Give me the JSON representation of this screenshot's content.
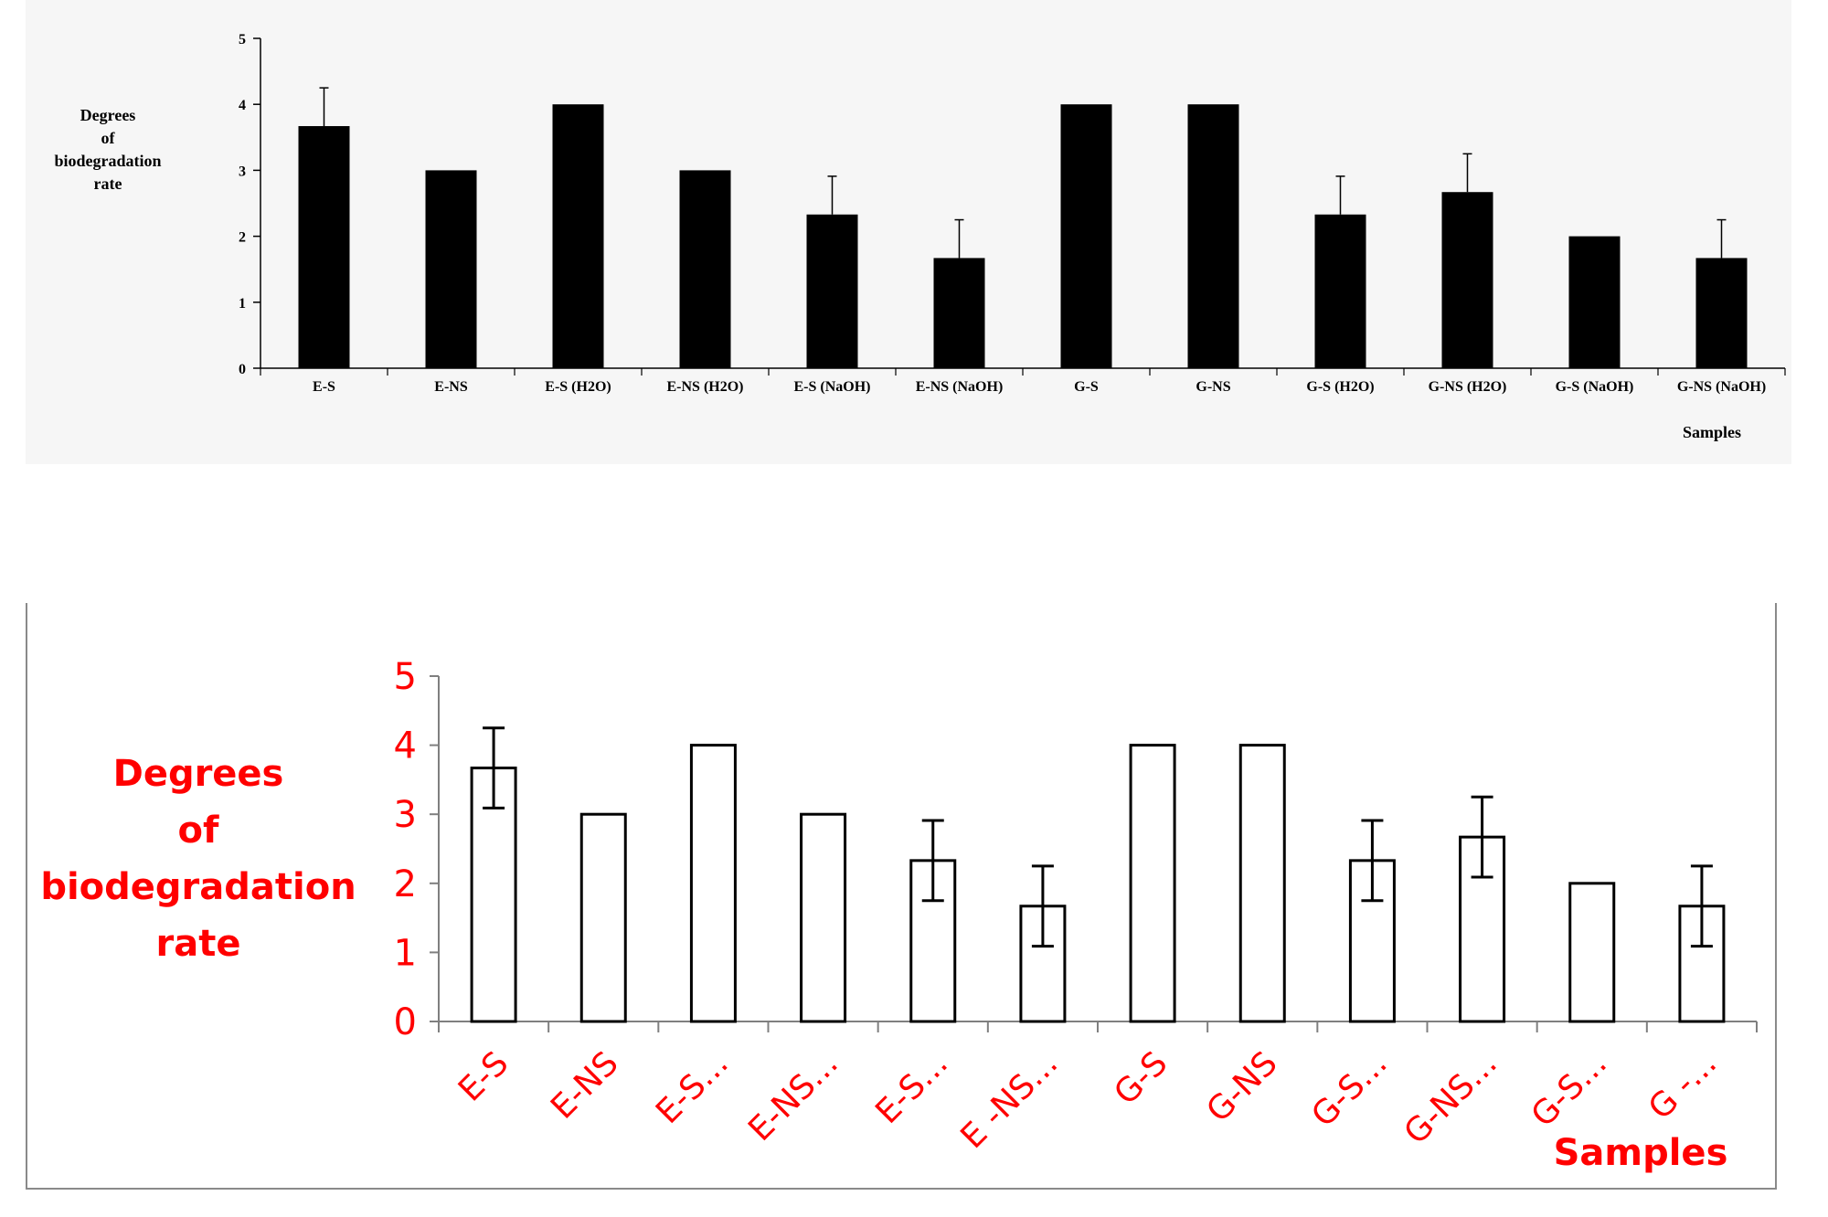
{
  "chart_data": [
    {
      "type": "bar",
      "style": "filled black bars with upper error bars",
      "categories": [
        "E-S",
        "E-NS",
        "E-S (H2O)",
        "E-NS (H2O)",
        "E-S (NaOH)",
        "E-NS (NaOH)",
        "G-S",
        "G-NS",
        "G-S (H2O)",
        "G-NS (H2O)",
        "G-S (NaOH)",
        "G-NS (NaOH)"
      ],
      "values": [
        3.67,
        3,
        4,
        3,
        2.33,
        1.67,
        4,
        4,
        2.33,
        2.67,
        2,
        1.67
      ],
      "errors": [
        0.58,
        0,
        0,
        0,
        0.58,
        0.58,
        0,
        0,
        0.58,
        0.58,
        0,
        0.58
      ],
      "yticks": [
        "0",
        "1",
        "2",
        "3",
        "4",
        "5"
      ],
      "ylim": [
        0,
        5
      ],
      "ylabel_lines": [
        "Degrees",
        "of",
        "biodegradation",
        "rate"
      ],
      "xlabel": "Samples",
      "grid": false,
      "colors": {
        "bar": "#000000",
        "text": "#000000",
        "background": "#f6f6f6"
      }
    },
    {
      "type": "bar",
      "style": "outlined white bars with symmetric error bars",
      "categories": [
        "E-S",
        "E-NS",
        "E-S...",
        "E-NS...",
        "E-S...",
        "E -NS...",
        "G-S",
        "G-NS",
        "G-S...",
        "G-NS...",
        "G-S...",
        "G -..."
      ],
      "values": [
        3.67,
        3,
        4,
        3,
        2.33,
        1.67,
        4,
        4,
        2.33,
        2.67,
        2,
        1.67
      ],
      "errors": [
        0.58,
        0,
        0,
        0,
        0.58,
        0.58,
        0,
        0,
        0.58,
        0.58,
        0,
        0.58
      ],
      "yticks": [
        "0",
        "1",
        "2",
        "3",
        "4",
        "5"
      ],
      "ylim": [
        0,
        5
      ],
      "ylabel_lines": [
        "Degrees",
        "of",
        "biodegradation",
        "rate"
      ],
      "xlabel": "Samples",
      "grid": false,
      "colors": {
        "bar_fill": "#ffffff",
        "bar_stroke": "#000000",
        "text": "#ff0000",
        "background": "#ffffff"
      }
    }
  ]
}
